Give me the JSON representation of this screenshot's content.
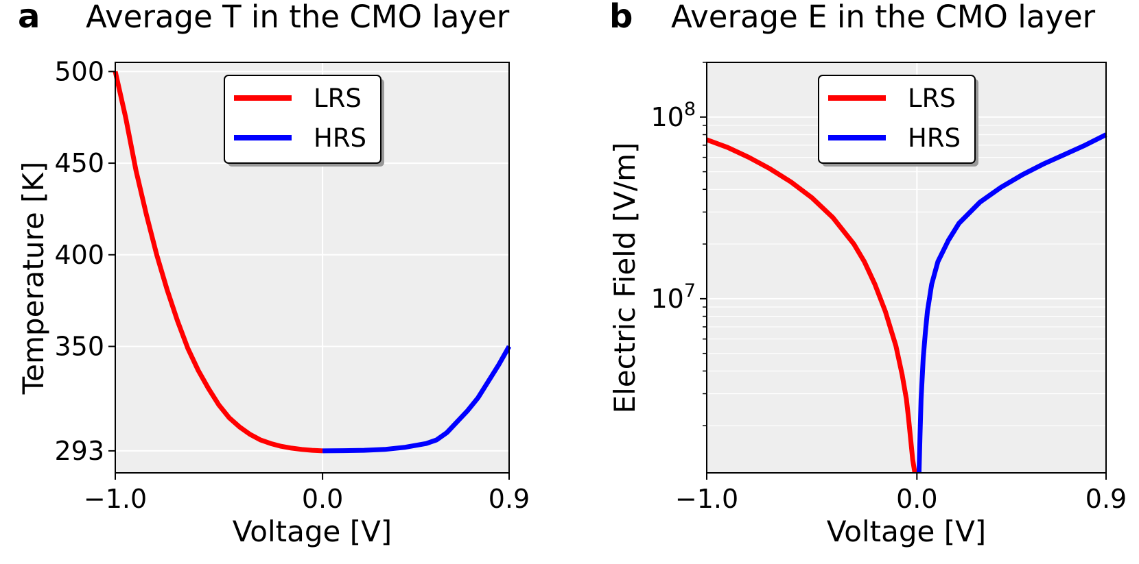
{
  "chart_data": [
    {
      "type": "line",
      "panel_letter": "a",
      "title": "Average T in the CMO layer",
      "xlabel": "Voltage [V]",
      "ylabel": "Temperature [K]",
      "xlim": [
        -1.0,
        0.9
      ],
      "ylim": [
        281,
        505
      ],
      "yscale": "linear",
      "x_ticks": [
        -1.0,
        0.0,
        0.9
      ],
      "x_tick_labels": [
        "−1.0",
        "0.0",
        "0.9"
      ],
      "y_ticks": [
        293,
        350,
        400,
        450,
        500
      ],
      "y_tick_labels": [
        "293",
        "350",
        "400",
        "450",
        "500"
      ],
      "grid": true,
      "legend": {
        "position": "top-center",
        "entries": [
          "LRS",
          "HRS"
        ]
      },
      "series": [
        {
          "name": "LRS",
          "color": "#ff0000",
          "x": [
            -1.0,
            -0.95,
            -0.9,
            -0.85,
            -0.8,
            -0.75,
            -0.7,
            -0.65,
            -0.6,
            -0.55,
            -0.5,
            -0.45,
            -0.4,
            -0.35,
            -0.3,
            -0.25,
            -0.2,
            -0.15,
            -0.1,
            -0.05,
            0.0
          ],
          "y": [
            500,
            475,
            446,
            422,
            400,
            381,
            364,
            349,
            337,
            327,
            318,
            311,
            306,
            302,
            299,
            297,
            295.5,
            294.5,
            293.8,
            293.3,
            293
          ]
        },
        {
          "name": "HRS",
          "color": "#0000ff",
          "x": [
            0.0,
            0.1,
            0.2,
            0.3,
            0.4,
            0.5,
            0.55,
            0.6,
            0.65,
            0.7,
            0.75,
            0.8,
            0.85,
            0.9
          ],
          "y": [
            293,
            293.1,
            293.3,
            293.8,
            295,
            297,
            299,
            303,
            309,
            315,
            322,
            331,
            340,
            350
          ]
        }
      ]
    },
    {
      "type": "line",
      "panel_letter": "b",
      "title": "Average E in the CMO layer",
      "xlabel": "Voltage [V]",
      "ylabel": "Electric Field [V/m]",
      "xlim": [
        -1.0,
        0.9
      ],
      "ylim": [
        1100000,
        200000000
      ],
      "yscale": "log",
      "x_ticks": [
        -1.0,
        0.0,
        0.9
      ],
      "x_tick_labels": [
        "−1.0",
        "0.0",
        "0.9"
      ],
      "y_major_ticks": [
        10000000,
        100000000
      ],
      "y_tick_base": "10",
      "y_tick_exponents": [
        "7",
        "8"
      ],
      "grid": true,
      "legend": {
        "position": "top-center",
        "entries": [
          "LRS",
          "HRS"
        ]
      },
      "series": [
        {
          "name": "LRS",
          "color": "#ff0000",
          "x": [
            -1.0,
            -0.9,
            -0.8,
            -0.7,
            -0.6,
            -0.5,
            -0.4,
            -0.3,
            -0.25,
            -0.2,
            -0.15,
            -0.1,
            -0.07,
            -0.05,
            -0.04,
            -0.03,
            -0.02,
            -0.01
          ],
          "y": [
            75000000,
            68000000,
            60000000,
            52000000,
            44000000,
            36000000,
            28000000,
            20000000,
            16000000,
            12000000,
            8500000,
            5500000,
            3800000,
            2800000,
            2200000,
            1700000,
            1300000,
            1100000
          ]
        },
        {
          "name": "HRS",
          "color": "#0000ff",
          "x": [
            0.01,
            0.015,
            0.02,
            0.03,
            0.04,
            0.05,
            0.07,
            0.1,
            0.15,
            0.2,
            0.3,
            0.4,
            0.5,
            0.6,
            0.7,
            0.8,
            0.9
          ],
          "y": [
            1100000,
            1800000,
            2800000,
            4700000,
            6500000,
            8500000,
            12000000,
            16000000,
            21000000,
            26000000,
            34000000,
            41000000,
            48000000,
            55000000,
            62000000,
            70000000,
            80000000
          ]
        }
      ]
    }
  ]
}
